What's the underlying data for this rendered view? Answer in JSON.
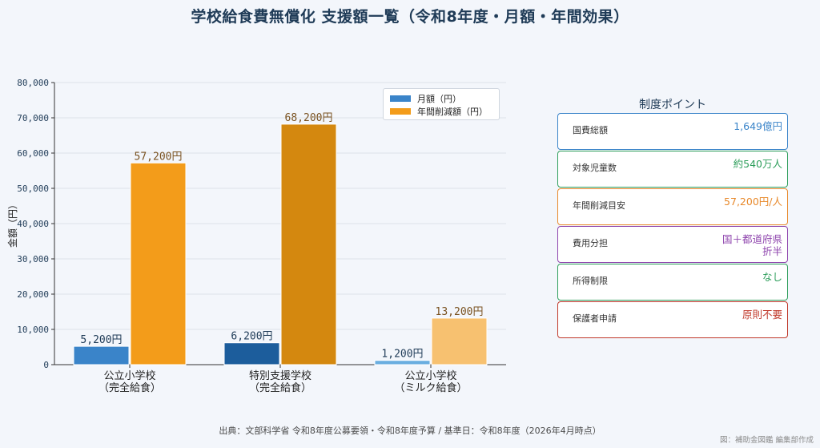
{
  "title": "学校給食費無償化 支援額一覧（令和8年度・月額・年間効果）",
  "chart_data": {
    "type": "bar",
    "categories": [
      {
        "line1": "公立小学校",
        "line2": "（完全給食）"
      },
      {
        "line1": "特別支援学校",
        "line2": "（完全給食）"
      },
      {
        "line1": "公立小学校",
        "line2": "（ミルク給食）"
      }
    ],
    "series": [
      {
        "name": "月額（円）",
        "values": [
          5200,
          6200,
          1200
        ],
        "labels": [
          "5,200円",
          "6,200円",
          "1,200円"
        ],
        "colors": [
          "#3a84c9",
          "#1c5d9c",
          "#6aaee0"
        ],
        "legend_color": "#3a84c9",
        "label_color": "#1f3b57"
      },
      {
        "name": "年間削減額（円）",
        "values": [
          57200,
          68200,
          13200
        ],
        "labels": [
          "57,200円",
          "68,200円",
          "13,200円"
        ],
        "colors": [
          "#f39c1a",
          "#d4880f",
          "#f7c170"
        ],
        "legend_color": "#f39c1a",
        "label_color": "#7a5220"
      }
    ],
    "ylabel": "金額（円）",
    "ylim": [
      0,
      80000
    ],
    "yticks": [
      0,
      10000,
      20000,
      30000,
      40000,
      50000,
      60000,
      70000,
      80000
    ],
    "ytick_labels": [
      "0",
      "10,000",
      "20,000",
      "30,000",
      "40,000",
      "50,000",
      "60,000",
      "70,000",
      "80,000"
    ],
    "grid": true,
    "legend_position": "top-right"
  },
  "panel": {
    "title": "制度ポイント",
    "cards": [
      {
        "label": "国費総額",
        "value": "1,649億円",
        "color": "#3a84c9"
      },
      {
        "label": "対象児童数",
        "value": "約540万人",
        "color": "#2e9e5b"
      },
      {
        "label": "年間削減目安",
        "value": "57,200円/人",
        "color": "#e8892b"
      },
      {
        "label": "費用分担",
        "value": "国＋都道府県\n折半",
        "color": "#8e44ad"
      },
      {
        "label": "所得制限",
        "value": "なし",
        "color": "#2e9e5b"
      },
      {
        "label": "保護者申請",
        "value": "原則不要",
        "color": "#c0392b"
      }
    ]
  },
  "source": "出典：文部科学省 令和8年度公募要領・令和8年度予算 / 基準日：令和8年度（2026年4月時点）",
  "credit": "図：補助金図鑑 編集部作成"
}
